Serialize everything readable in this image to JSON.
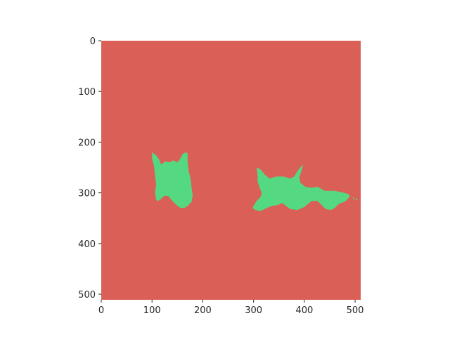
{
  "chart_data": {
    "type": "heatmap",
    "title": "",
    "xlabel": "",
    "ylabel": "",
    "xlim": [
      0,
      511
    ],
    "ylim": [
      511,
      0
    ],
    "x_ticks": [
      0,
      100,
      200,
      300,
      400,
      500
    ],
    "y_ticks": [
      0,
      100,
      200,
      300,
      400,
      500
    ],
    "grid": false,
    "legend": "none",
    "classes": [
      {
        "value": 0,
        "color": "#da5f56"
      },
      {
        "value": 1,
        "color": "#55d882"
      }
    ],
    "regions": [
      {
        "class": 1,
        "outline": [
          [
            100,
            220
          ],
          [
            108,
            226
          ],
          [
            114,
            234
          ],
          [
            118,
            244
          ],
          [
            126,
            238
          ],
          [
            134,
            240
          ],
          [
            142,
            236
          ],
          [
            150,
            240
          ],
          [
            156,
            232
          ],
          [
            160,
            224
          ],
          [
            166,
            220
          ],
          [
            170,
            222
          ],
          [
            170,
            240
          ],
          [
            172,
            256
          ],
          [
            176,
            272
          ],
          [
            178,
            290
          ],
          [
            180,
            305
          ],
          [
            178,
            318
          ],
          [
            170,
            326
          ],
          [
            164,
            330
          ],
          [
            156,
            330
          ],
          [
            148,
            324
          ],
          [
            140,
            316
          ],
          [
            132,
            306
          ],
          [
            124,
            306
          ],
          [
            118,
            312
          ],
          [
            112,
            316
          ],
          [
            108,
            314
          ],
          [
            106,
            300
          ],
          [
            108,
            284
          ],
          [
            106,
            266
          ],
          [
            104,
            248
          ],
          [
            100,
            232
          ]
        ]
      },
      {
        "class": 1,
        "outline": [
          [
            306,
            250
          ],
          [
            314,
            254
          ],
          [
            322,
            264
          ],
          [
            332,
            272
          ],
          [
            344,
            268
          ],
          [
            360,
            268
          ],
          [
            372,
            272
          ],
          [
            380,
            268
          ],
          [
            386,
            258
          ],
          [
            392,
            250
          ],
          [
            398,
            244
          ],
          [
            394,
            258
          ],
          [
            390,
            270
          ],
          [
            392,
            280
          ],
          [
            402,
            288
          ],
          [
            414,
            290
          ],
          [
            426,
            288
          ],
          [
            440,
            296
          ],
          [
            460,
            296
          ],
          [
            478,
            300
          ],
          [
            486,
            302
          ],
          [
            490,
            306
          ],
          [
            484,
            314
          ],
          [
            478,
            318
          ],
          [
            468,
            322
          ],
          [
            460,
            330
          ],
          [
            452,
            334
          ],
          [
            442,
            332
          ],
          [
            432,
            322
          ],
          [
            426,
            316
          ],
          [
            414,
            316
          ],
          [
            400,
            328
          ],
          [
            386,
            334
          ],
          [
            372,
            332
          ],
          [
            364,
            326
          ],
          [
            356,
            320
          ],
          [
            348,
            324
          ],
          [
            336,
            326
          ],
          [
            326,
            330
          ],
          [
            314,
            336
          ],
          [
            304,
            334
          ],
          [
            298,
            330
          ],
          [
            302,
            322
          ],
          [
            306,
            316
          ],
          [
            314,
            308
          ],
          [
            316,
            300
          ],
          [
            312,
            290
          ],
          [
            308,
            278
          ],
          [
            308,
            266
          ]
        ]
      }
    ],
    "specks": [
      {
        "class": 1,
        "x": 497,
        "y": 311
      },
      {
        "class": 1,
        "x": 503,
        "y": 313
      }
    ]
  }
}
